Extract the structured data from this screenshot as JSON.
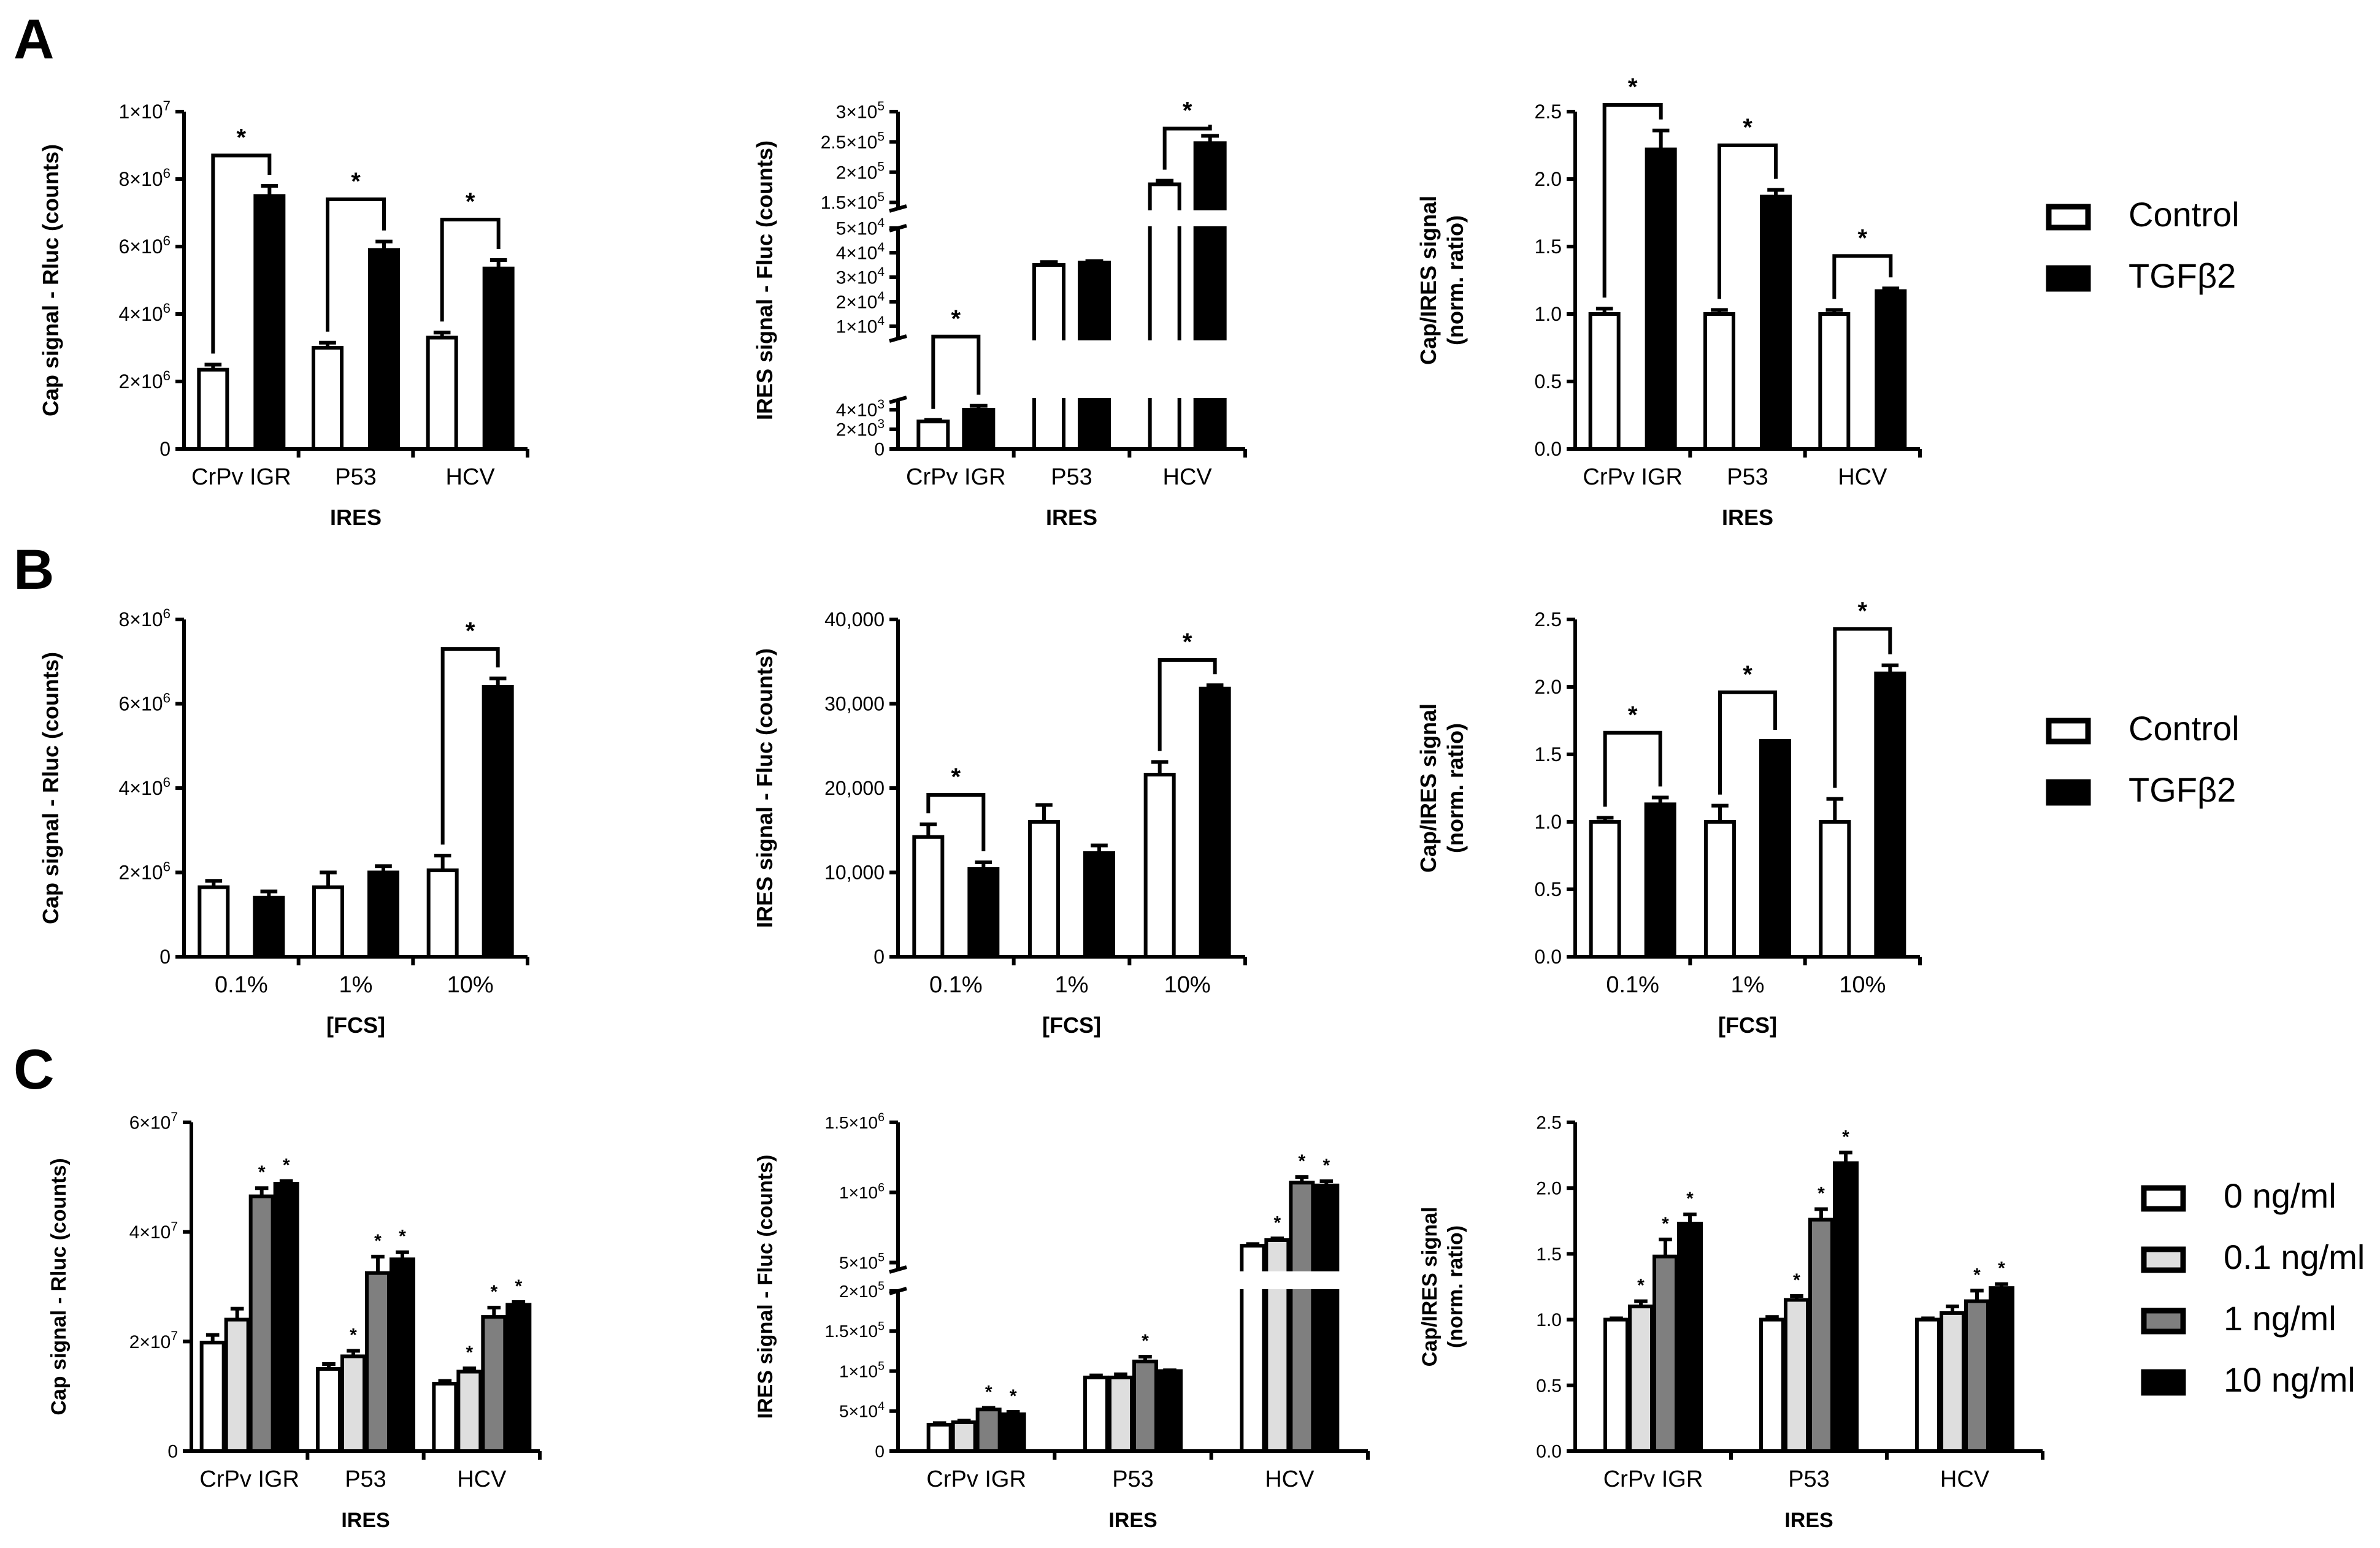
{
  "figure": {
    "panel_labels": [
      "A",
      "B",
      "C"
    ],
    "legend_ab": [
      {
        "label": "Control",
        "style": "open"
      },
      {
        "label": "TGFβ2",
        "style": "solid"
      }
    ],
    "legend_c": [
      {
        "label": "0 ng/ml",
        "style": "open"
      },
      {
        "label": "0.1 ng/ml",
        "style": "light"
      },
      {
        "label": "1 ng/ml",
        "style": "gray"
      },
      {
        "label": "10 ng/ml",
        "style": "solid"
      }
    ],
    "colors": {
      "open": "#ffffff",
      "light": "#dedede",
      "gray": "#7f7f7f",
      "solid": "#000000",
      "ink": "#000000"
    }
  },
  "chart_data": [
    {
      "id": "A1",
      "type": "bar",
      "panel": "A",
      "ylabel": "Cap signal - Rluc (counts)",
      "xlabel": "IRES",
      "categories": [
        "CrPv IGR",
        "P53",
        "HCV"
      ],
      "ylim": [
        0,
        10000000
      ],
      "yticks": [
        {
          "value": 0,
          "mant": "0"
        },
        {
          "value": 2000000,
          "mant": "2×10",
          "exp": "6"
        },
        {
          "value": 4000000,
          "mant": "4×10",
          "exp": "6"
        },
        {
          "value": 6000000,
          "mant": "6×10",
          "exp": "6"
        },
        {
          "value": 8000000,
          "mant": "8×10",
          "exp": "6"
        },
        {
          "value": 10000000,
          "mant": "1×10",
          "exp": "7"
        }
      ],
      "series": [
        {
          "name": "Control",
          "style": "open",
          "values": [
            2350000,
            3000000,
            3300000
          ],
          "errors": [
            150000,
            150000,
            150000
          ]
        },
        {
          "name": "TGFβ2",
          "style": "solid",
          "values": [
            7500000,
            5900000,
            5350000
          ],
          "errors": [
            300000,
            250000,
            250000
          ]
        }
      ],
      "significance": [
        {
          "from": [
            0,
            0
          ],
          "to": [
            0,
            1
          ],
          "y": 8700000,
          "label": "*"
        },
        {
          "from": [
            1,
            0
          ],
          "to": [
            1,
            1
          ],
          "y": 7400000,
          "label": "*"
        },
        {
          "from": [
            2,
            0
          ],
          "to": [
            2,
            1
          ],
          "y": 6800000,
          "label": "*"
        }
      ]
    },
    {
      "id": "A2",
      "type": "bar",
      "panel": "A",
      "axis_break": true,
      "ylabel": "IRES signal - Fluc (counts)",
      "xlabel": "IRES",
      "categories": [
        "CrPv IGR",
        "P53",
        "HCV"
      ],
      "segments": [
        {
          "ylim": [
            0,
            5000
          ],
          "yticks": [
            {
              "value": 0,
              "mant": "0"
            },
            {
              "value": 2000,
              "mant": "2×10",
              "exp": "3"
            },
            {
              "value": 4000,
              "mant": "4×10",
              "exp": "3"
            }
          ]
        },
        {
          "ylim": [
            5000,
            50000
          ],
          "yticks": [
            {
              "value": 10000,
              "mant": "1×10",
              "exp": "4"
            },
            {
              "value": 20000,
              "mant": "2×10",
              "exp": "4"
            },
            {
              "value": 30000,
              "mant": "3×10",
              "exp": "4"
            },
            {
              "value": 40000,
              "mant": "4×10",
              "exp": "4"
            },
            {
              "value": 50000,
              "mant": "5×10",
              "exp": "4"
            }
          ]
        },
        {
          "ylim": [
            140000,
            300000
          ],
          "yticks": [
            {
              "value": 150000,
              "mant": "1.5×10",
              "exp": "5"
            },
            {
              "value": 200000,
              "mant": "2×10",
              "exp": "5"
            },
            {
              "value": 250000,
              "mant": "2.5×10",
              "exp": "5"
            },
            {
              "value": 300000,
              "mant": "3×10",
              "exp": "5"
            }
          ]
        }
      ],
      "series": [
        {
          "name": "Control",
          "style": "open",
          "values": [
            2800,
            35000,
            180000
          ],
          "errors": [
            150,
            1200,
            6000
          ]
        },
        {
          "name": "TGFβ2",
          "style": "solid",
          "values": [
            4000,
            36000,
            248000
          ],
          "errors": [
            400,
            600,
            12000
          ]
        }
      ],
      "significance": [
        {
          "from": [
            0,
            0
          ],
          "to": [
            0,
            1
          ],
          "y": 5800,
          "label": "*"
        },
        {
          "from": [
            2,
            0
          ],
          "to": [
            2,
            1
          ],
          "y": 272000,
          "label": "*"
        }
      ]
    },
    {
      "id": "A3",
      "type": "bar",
      "panel": "A",
      "ylabel": [
        "Cap/IRES signal",
        "(norm. ratio)"
      ],
      "xlabel": "IRES",
      "categories": [
        "CrPv IGR",
        "P53",
        "HCV"
      ],
      "ylim": [
        0,
        2.5
      ],
      "yticks": [
        {
          "value": 0,
          "mant": "0.0"
        },
        {
          "value": 0.5,
          "mant": "0.5"
        },
        {
          "value": 1,
          "mant": "1.0"
        },
        {
          "value": 1.5,
          "mant": "1.5"
        },
        {
          "value": 2,
          "mant": "2.0"
        },
        {
          "value": 2.5,
          "mant": "2.5"
        }
      ],
      "series": [
        {
          "name": "Control",
          "style": "open",
          "values": [
            1.0,
            1.0,
            1.0
          ],
          "errors": [
            0.04,
            0.03,
            0.03
          ]
        },
        {
          "name": "TGFβ2",
          "style": "solid",
          "values": [
            2.22,
            1.87,
            1.17
          ],
          "errors": [
            0.14,
            0.05,
            0.02
          ]
        }
      ],
      "significance": [
        {
          "from": [
            0,
            0
          ],
          "to": [
            0,
            1
          ],
          "y": 2.55,
          "label": "*"
        },
        {
          "from": [
            1,
            0
          ],
          "to": [
            1,
            1
          ],
          "y": 2.25,
          "label": "*"
        },
        {
          "from": [
            2,
            0
          ],
          "to": [
            2,
            1
          ],
          "y": 1.43,
          "label": "*"
        }
      ]
    },
    {
      "id": "B1",
      "type": "bar",
      "panel": "B",
      "ylabel": "Cap signal - Rluc (counts)",
      "xlabel": "[FCS]",
      "categories": [
        "0.1%",
        "1%",
        "10%"
      ],
      "ylim": [
        0,
        8000000
      ],
      "yticks": [
        {
          "value": 0,
          "mant": "0"
        },
        {
          "value": 2000000,
          "mant": "2×10",
          "exp": "6"
        },
        {
          "value": 4000000,
          "mant": "4×10",
          "exp": "6"
        },
        {
          "value": 6000000,
          "mant": "6×10",
          "exp": "6"
        },
        {
          "value": 8000000,
          "mant": "8×10",
          "exp": "6"
        }
      ],
      "series": [
        {
          "name": "Control",
          "style": "open",
          "values": [
            1650000,
            1650000,
            2050000
          ],
          "errors": [
            150000,
            350000,
            350000
          ]
        },
        {
          "name": "TGFβ2",
          "style": "solid",
          "values": [
            1400000,
            2000000,
            6400000
          ],
          "errors": [
            150000,
            150000,
            200000
          ]
        }
      ],
      "significance": [
        {
          "from": [
            2,
            0
          ],
          "to": [
            2,
            1
          ],
          "y": 7300000,
          "label": "*"
        }
      ]
    },
    {
      "id": "B2",
      "type": "bar",
      "panel": "B",
      "ylabel": "IRES signal - Fluc (counts)",
      "xlabel": "[FCS]",
      "categories": [
        "0.1%",
        "1%",
        "10%"
      ],
      "ylim": [
        0,
        40000
      ],
      "yticks": [
        {
          "value": 0,
          "mant": "0"
        },
        {
          "value": 10000,
          "mant": "10,000"
        },
        {
          "value": 20000,
          "mant": "20,000"
        },
        {
          "value": 30000,
          "mant": "30,000"
        },
        {
          "value": 40000,
          "mant": "40,000"
        }
      ],
      "series": [
        {
          "name": "Control",
          "style": "open",
          "values": [
            14200,
            16000,
            21600
          ],
          "errors": [
            1500,
            2000,
            1500
          ]
        },
        {
          "name": "TGFβ2",
          "style": "solid",
          "values": [
            10400,
            12300,
            31800
          ],
          "errors": [
            800,
            900,
            400
          ]
        }
      ],
      "significance": [
        {
          "from": [
            0,
            0
          ],
          "to": [
            0,
            1
          ],
          "y": 19200,
          "label": "*"
        },
        {
          "from": [
            2,
            0
          ],
          "to": [
            2,
            1
          ],
          "y": 35200,
          "label": "*"
        }
      ]
    },
    {
      "id": "B3",
      "type": "bar",
      "panel": "B",
      "ylabel": [
        "Cap/IRES signal",
        "(norm. ratio)"
      ],
      "xlabel": "[FCS]",
      "categories": [
        "0.1%",
        "1%",
        "10%"
      ],
      "ylim": [
        0,
        2.5
      ],
      "yticks": [
        {
          "value": 0,
          "mant": "0.0"
        },
        {
          "value": 0.5,
          "mant": "0.5"
        },
        {
          "value": 1,
          "mant": "1.0"
        },
        {
          "value": 1.5,
          "mant": "1.5"
        },
        {
          "value": 2,
          "mant": "2.0"
        },
        {
          "value": 2.5,
          "mant": "2.5"
        }
      ],
      "series": [
        {
          "name": "Control",
          "style": "open",
          "values": [
            1.0,
            1.0,
            1.0
          ],
          "errors": [
            0.03,
            0.12,
            0.17
          ]
        },
        {
          "name": "TGFβ2",
          "style": "solid",
          "values": [
            1.13,
            1.6,
            2.1
          ],
          "errors": [
            0.05,
            0.0,
            0.06
          ]
        }
      ],
      "significance": [
        {
          "from": [
            0,
            0
          ],
          "to": [
            0,
            1
          ],
          "y": 1.66,
          "label": "*"
        },
        {
          "from": [
            1,
            0
          ],
          "to": [
            1,
            1
          ],
          "y": 1.96,
          "label": "*"
        },
        {
          "from": [
            2,
            0
          ],
          "to": [
            2,
            1
          ],
          "y": 2.43,
          "label": "*"
        }
      ]
    },
    {
      "id": "C1",
      "type": "bar",
      "panel": "C",
      "ylabel": "Cap signal - Rluc (counts)",
      "xlabel": "IRES",
      "categories": [
        "CrPv IGR",
        "P53",
        "HCV"
      ],
      "ylim": [
        0,
        60000000
      ],
      "yticks": [
        {
          "value": 0,
          "mant": "0"
        },
        {
          "value": 20000000,
          "mant": "2×10",
          "exp": "7"
        },
        {
          "value": 40000000,
          "mant": "4×10",
          "exp": "7"
        },
        {
          "value": 60000000,
          "mant": "6×10",
          "exp": "7"
        }
      ],
      "series": [
        {
          "name": "0 ng/ml",
          "style": "open",
          "values": [
            19800000,
            15000000,
            12300000
          ],
          "errors": [
            1400000,
            900000,
            500000
          ],
          "stars": [
            false,
            false,
            false
          ]
        },
        {
          "name": "0.1 ng/ml",
          "style": "light",
          "values": [
            24000000,
            17300000,
            14500000
          ],
          "errors": [
            2000000,
            1000000,
            600000
          ],
          "stars": [
            false,
            true,
            true
          ]
        },
        {
          "name": "1 ng/ml",
          "style": "gray",
          "values": [
            46500000,
            32500000,
            24500000
          ],
          "errors": [
            1500000,
            3000000,
            1700000
          ],
          "stars": [
            true,
            true,
            true
          ]
        },
        {
          "name": "10 ng/ml",
          "style": "solid",
          "values": [
            48800000,
            35000000,
            26700000
          ],
          "errors": [
            500000,
            1300000,
            500000
          ],
          "stars": [
            true,
            true,
            true
          ]
        }
      ]
    },
    {
      "id": "C2",
      "type": "bar",
      "panel": "C",
      "axis_break": true,
      "ylabel": "IRES signal - Fluc (counts)",
      "xlabel": "IRES",
      "categories": [
        "CrPv IGR",
        "P53",
        "HCV"
      ],
      "segments": [
        {
          "ylim": [
            0,
            200000
          ],
          "yticks": [
            {
              "value": 0,
              "mant": "0"
            },
            {
              "value": 50000,
              "mant": "5×10",
              "exp": "4"
            },
            {
              "value": 100000,
              "mant": "1×10",
              "exp": "5"
            },
            {
              "value": 150000,
              "mant": "1.5×10",
              "exp": "5"
            },
            {
              "value": 200000,
              "mant": "2×10",
              "exp": "5"
            }
          ]
        },
        {
          "ylim": [
            450000,
            1500000
          ],
          "yticks": [
            {
              "value": 500000,
              "mant": "5×10",
              "exp": "5"
            },
            {
              "value": 1000000,
              "mant": "1×10",
              "exp": "6"
            },
            {
              "value": 1500000,
              "mant": "1.5×10",
              "exp": "6"
            }
          ]
        }
      ],
      "series": [
        {
          "name": "0 ng/ml",
          "style": "open",
          "values": [
            33000,
            92000,
            620000
          ],
          "errors": [
            2000,
            2500,
            12000
          ],
          "stars": [
            false,
            false,
            false
          ]
        },
        {
          "name": "0.1 ng/ml",
          "style": "light",
          "values": [
            36000,
            92000,
            660000
          ],
          "errors": [
            2000,
            4000,
            12000
          ],
          "stars": [
            false,
            false,
            true
          ]
        },
        {
          "name": "1 ng/ml",
          "style": "gray",
          "values": [
            52000,
            112000,
            1070000
          ],
          "errors": [
            2000,
            6000,
            40000
          ],
          "stars": [
            true,
            true,
            true
          ]
        },
        {
          "name": "10 ng/ml",
          "style": "solid",
          "values": [
            46000,
            100000,
            1050000
          ],
          "errors": [
            3000,
            1000,
            30000
          ],
          "stars": [
            true,
            false,
            true
          ]
        }
      ]
    },
    {
      "id": "C3",
      "type": "bar",
      "panel": "C",
      "ylabel": [
        "Cap/IRES signal",
        "(norm. ratio)"
      ],
      "xlabel": "IRES",
      "categories": [
        "CrPv IGR",
        "P53",
        "HCV"
      ],
      "ylim": [
        0,
        2.5
      ],
      "yticks": [
        {
          "value": 0,
          "mant": "0.0"
        },
        {
          "value": 0.5,
          "mant": "0.5"
        },
        {
          "value": 1,
          "mant": "1.0"
        },
        {
          "value": 1.5,
          "mant": "1.5"
        },
        {
          "value": 2,
          "mant": "2.0"
        },
        {
          "value": 2.5,
          "mant": "2.5"
        }
      ],
      "series": [
        {
          "name": "0 ng/ml",
          "style": "open",
          "values": [
            1.0,
            1.0,
            1.0
          ],
          "errors": [
            0.01,
            0.02,
            0.01
          ],
          "stars": [
            false,
            false,
            false
          ]
        },
        {
          "name": "0.1 ng/ml",
          "style": "light",
          "values": [
            1.1,
            1.15,
            1.05
          ],
          "errors": [
            0.04,
            0.03,
            0.05
          ],
          "stars": [
            true,
            true,
            false
          ]
        },
        {
          "name": "1 ng/ml",
          "style": "gray",
          "values": [
            1.48,
            1.76,
            1.14
          ],
          "errors": [
            0.13,
            0.08,
            0.08
          ],
          "stars": [
            true,
            true,
            true
          ]
        },
        {
          "name": "10 ng/ml",
          "style": "solid",
          "values": [
            1.73,
            2.19,
            1.24
          ],
          "errors": [
            0.07,
            0.08,
            0.03
          ],
          "stars": [
            true,
            true,
            true
          ]
        }
      ]
    }
  ]
}
